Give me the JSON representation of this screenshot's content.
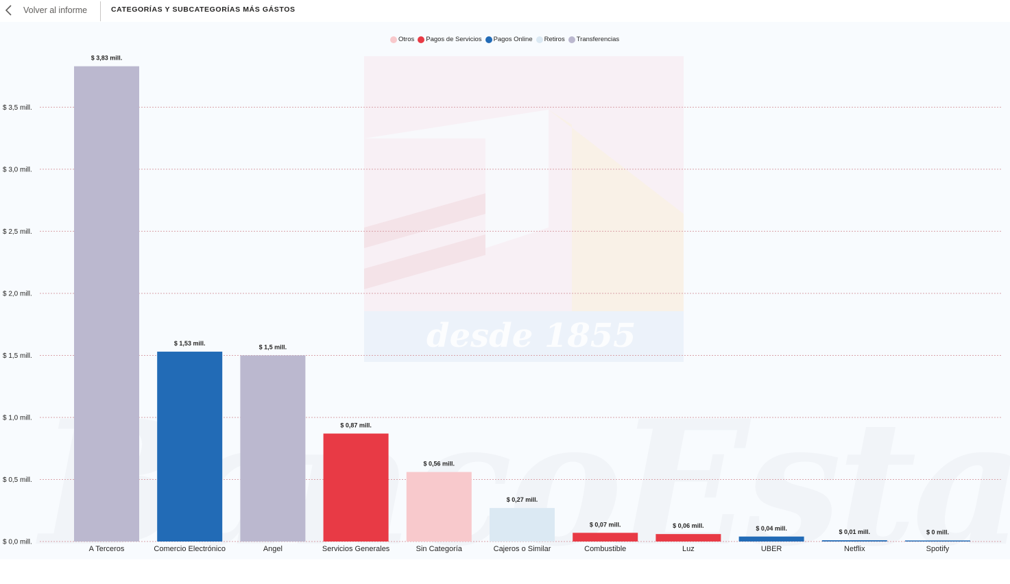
{
  "header": {
    "back_label": "Volver al informe",
    "title": "CATEGORÍAS Y SUBCATEGORÍAS MÁS GÁSTOS"
  },
  "watermark": {
    "brand_text": "BancoEstado",
    "since_text": "desde 1855"
  },
  "colors": {
    "Otros": "#f8c9cc",
    "Pagos de Servicios": "#e83a45",
    "Pagos Online": "#226bb6",
    "Retiros": "#dbe9f3",
    "Transferencias": "#bbb8cf"
  },
  "chart_data": {
    "type": "bar",
    "title": "",
    "xlabel": "",
    "ylabel": "",
    "ylim": [
      0,
      3.9
    ],
    "yticks": [
      {
        "value": 0.0,
        "label": "$ 0,0 mill."
      },
      {
        "value": 0.5,
        "label": "$ 0,5 mill."
      },
      {
        "value": 1.0,
        "label": "$ 1,0 mill."
      },
      {
        "value": 1.5,
        "label": "$ 1,5 mill."
      },
      {
        "value": 2.0,
        "label": "$ 2,0 mill."
      },
      {
        "value": 2.5,
        "label": "$ 2,5 mill."
      },
      {
        "value": 3.0,
        "label": "$ 3,0 mill."
      },
      {
        "value": 3.5,
        "label": "$ 3,5 mill."
      }
    ],
    "grid": true,
    "legend_position": "top-center",
    "legend": [
      "Otros",
      "Pagos de Servicios",
      "Pagos Online",
      "Retiros",
      "Transferencias"
    ],
    "categories": [
      "A Terceros",
      "Comercio Electrónico",
      "Angel",
      "Servicios Generales",
      "Sin Categoría",
      "Cajeros o Similar",
      "Combustible",
      "Luz",
      "UBER",
      "Netflix",
      "Spotify"
    ],
    "values": [
      3.83,
      1.53,
      1.5,
      0.87,
      0.56,
      0.27,
      0.07,
      0.06,
      0.04,
      0.01,
      0.005
    ],
    "data_labels": [
      "$ 3,83 mill.",
      "$ 1,53 mill.",
      "$ 1,5 mill.",
      "$ 0,87 mill.",
      "$ 0,56 mill.",
      "$ 0,27 mill.",
      "$ 0,07 mill.",
      "$ 0,06 mill.",
      "$ 0,04 mill.",
      "$ 0,01 mill.",
      "$ 0 mill."
    ],
    "bar_groups": [
      "Transferencias",
      "Pagos Online",
      "Transferencias",
      "Pagos de Servicios",
      "Otros",
      "Retiros",
      "Pagos de Servicios",
      "Pagos de Servicios",
      "Pagos Online",
      "Pagos Online",
      "Pagos Online"
    ]
  }
}
